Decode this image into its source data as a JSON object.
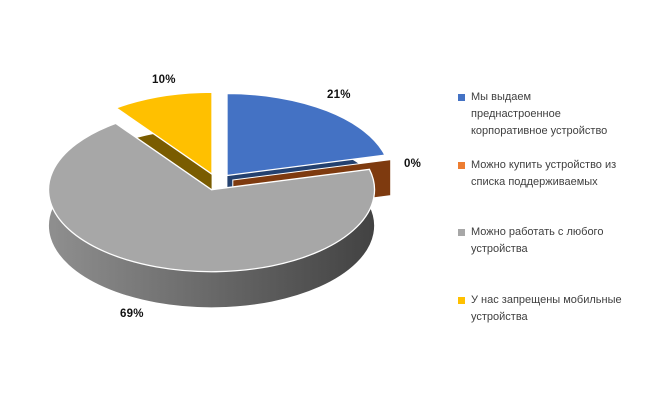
{
  "chart_data": {
    "type": "pie",
    "effect": "3d-exploded",
    "legend_position": "right",
    "data_labels": "percent-outside",
    "background_color": "#FFFFFF",
    "slices": [
      {
        "id": "issue-corporate-device",
        "label": "Мы выдаем\nпреднастроенное\nкорпоративное устройство",
        "value": 21,
        "pct": "21%",
        "color": "#4472C4",
        "side_color": "#24416F"
      },
      {
        "id": "buy-from-supported-list",
        "label": "Можно купить устройство из\nсписка поддерживаемых",
        "value": 0,
        "pct": "0%",
        "color": "#ED7D31",
        "side_color": "#7E3A0F"
      },
      {
        "id": "work-from-any-device",
        "label": "Можно работать с любого\nустройства",
        "value": 69,
        "pct": "69%",
        "color": "#A7A7A7",
        "side_color": "#5A5A5A",
        "side_gradient": [
          "#8F8F8F",
          "#424242"
        ]
      },
      {
        "id": "mobile-devices-banned",
        "label": "У нас запрещены мобильные\nустройства",
        "value": 10,
        "pct": "10%",
        "color": "#FFC000",
        "side_color": "#7A5C00"
      }
    ]
  }
}
